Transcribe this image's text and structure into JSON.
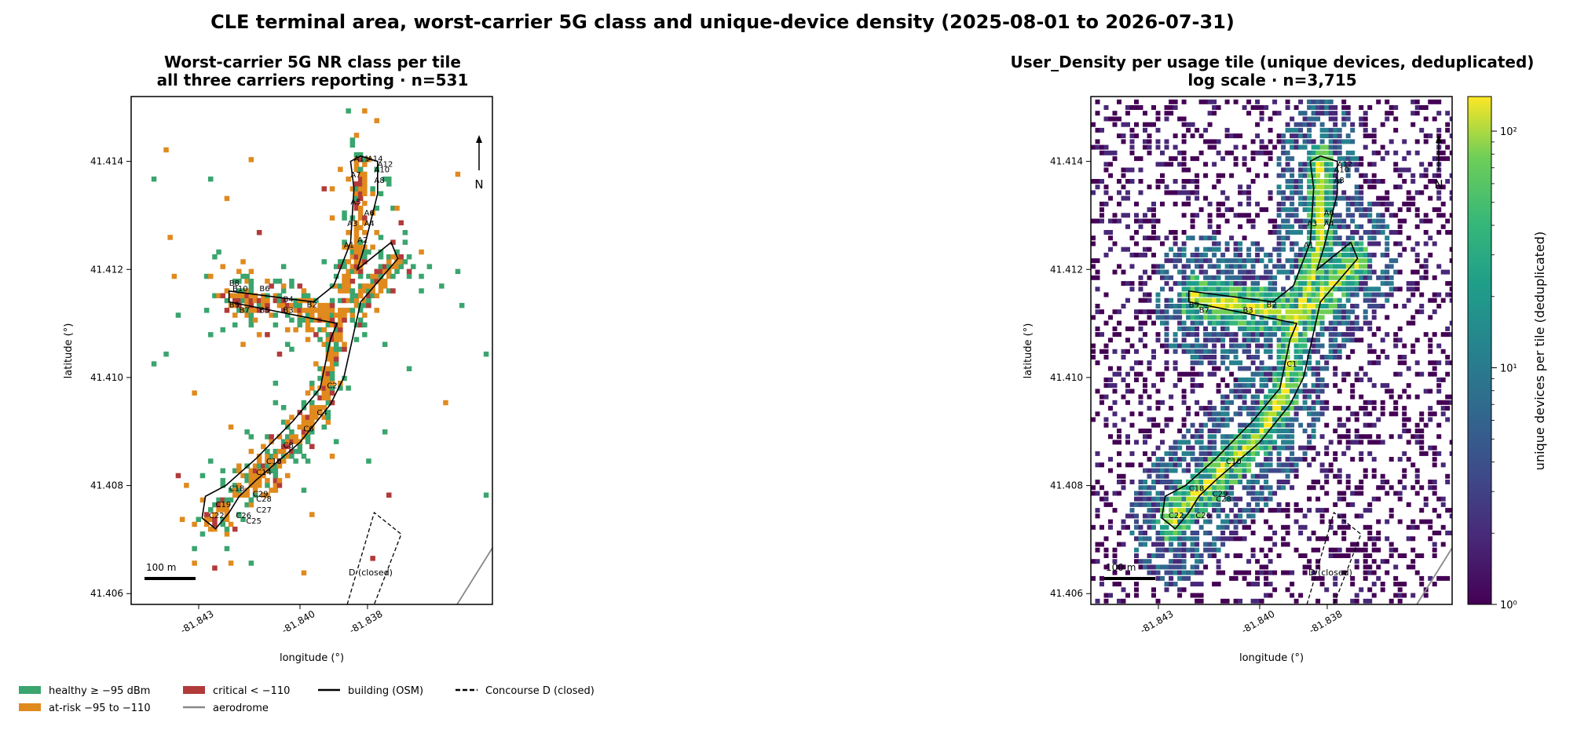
{
  "suptitle": "CLE terminal area, worst-carrier 5G class and unique-device density (2025-08-01 to 2026-07-31)",
  "chart_data": [
    {
      "type": "heatmap",
      "title_line1": "Worst-carrier 5G NR class per tile",
      "title_line2": "all three carriers reporting · n=531",
      "xlabel": "longitude (°)",
      "ylabel": "latitude (°)",
      "xticks": [
        "-81.843",
        "-81.840",
        "-81.838"
      ],
      "yticks": [
        "41.414",
        "41.412",
        "41.410",
        "41.408",
        "41.406"
      ],
      "xlim": [
        -81.845,
        -81.8343
      ],
      "ylim": [
        41.4058,
        41.4152
      ],
      "north_label": "N",
      "scalebar_label": "100 m",
      "concourse_d_label": "D (closed)",
      "classes": [
        {
          "name": "healthy ≥ −95 dBm",
          "color": "#3aa56e"
        },
        {
          "name": "at-risk −95 to −110",
          "color": "#e08a1e"
        },
        {
          "name": "critical < −110",
          "color": "#b23a3a"
        }
      ],
      "gates": [
        {
          "label": "A1",
          "lon": -81.8387,
          "lat": 41.4124
        },
        {
          "label": "A2",
          "lon": -81.8383,
          "lat": 41.4125
        },
        {
          "label": "A3",
          "lon": -81.8386,
          "lat": 41.4128
        },
        {
          "label": "A4",
          "lon": -81.8381,
          "lat": 41.4128
        },
        {
          "label": "A5",
          "lon": -81.8385,
          "lat": 41.4132
        },
        {
          "label": "A6",
          "lon": -81.8381,
          "lat": 41.413
        },
        {
          "label": "A7",
          "lon": -81.8385,
          "lat": 41.4137
        },
        {
          "label": "A8",
          "lon": -81.8378,
          "lat": 41.4136
        },
        {
          "label": "A10",
          "lon": -81.8378,
          "lat": 41.4138
        },
        {
          "label": "A11",
          "lon": -81.8384,
          "lat": 41.414
        },
        {
          "label": "A12",
          "lon": -81.8377,
          "lat": 41.4139
        },
        {
          "label": "A14",
          "lon": -81.838,
          "lat": 41.414
        },
        {
          "label": "B2",
          "lon": -81.8398,
          "lat": 41.4113
        },
        {
          "label": "B3",
          "lon": -81.8405,
          "lat": 41.4112
        },
        {
          "label": "B4",
          "lon": -81.8405,
          "lat": 41.4114
        },
        {
          "label": "B5",
          "lon": -81.8412,
          "lat": 41.4112
        },
        {
          "label": "B6",
          "lon": -81.8412,
          "lat": 41.4116
        },
        {
          "label": "B7",
          "lon": -81.8418,
          "lat": 41.4112
        },
        {
          "label": "B8",
          "lon": -81.8421,
          "lat": 41.4117
        },
        {
          "label": "B9",
          "lon": -81.8421,
          "lat": 41.4113
        },
        {
          "label": "B10",
          "lon": -81.842,
          "lat": 41.4116
        },
        {
          "label": "C2",
          "lon": -81.8392,
          "lat": 41.4098
        },
        {
          "label": "C4",
          "lon": -81.8395,
          "lat": 41.4093
        },
        {
          "label": "C6",
          "lon": -81.8399,
          "lat": 41.409
        },
        {
          "label": "C8",
          "lon": -81.8405,
          "lat": 41.4087
        },
        {
          "label": "C10",
          "lon": -81.841,
          "lat": 41.4084
        },
        {
          "label": "C14",
          "lon": -81.8413,
          "lat": 41.4082
        },
        {
          "label": "C18",
          "lon": -81.8421,
          "lat": 41.4079
        },
        {
          "label": "C19",
          "lon": -81.8425,
          "lat": 41.4076
        },
        {
          "label": "C22",
          "lon": -81.8427,
          "lat": 41.4074
        },
        {
          "label": "C25",
          "lon": -81.8416,
          "lat": 41.4073
        },
        {
          "label": "C26",
          "lon": -81.8419,
          "lat": 41.4074
        },
        {
          "label": "C27",
          "lon": -81.8413,
          "lat": 41.4075
        },
        {
          "label": "C28",
          "lon": -81.8413,
          "lat": 41.4077
        },
        {
          "label": "C29",
          "lon": -81.8414,
          "lat": 41.4078
        }
      ]
    },
    {
      "type": "heatmap",
      "title_line1": "User_Density per usage tile (unique devices, deduplicated)",
      "title_line2": "log scale · n=3,715",
      "xlabel": "longitude (°)",
      "ylabel": "latitude (°)",
      "xticks": [
        "-81.843",
        "-81.840",
        "-81.838"
      ],
      "yticks": [
        "41.414",
        "41.412",
        "41.410",
        "41.408",
        "41.406"
      ],
      "xlim": [
        -81.845,
        -81.8343
      ],
      "ylim": [
        41.4058,
        41.4152
      ],
      "north_label": "N",
      "scalebar_label": "100 m",
      "concourse_d_label": "D (closed)",
      "colorbar_label": "unique devices per tile (deduplicated)",
      "colorbar_scale": "log",
      "colorbar_range": [
        1,
        140
      ],
      "colorbar_ticks": [
        "10⁰",
        "10¹",
        "10²"
      ],
      "colormap": "viridis",
      "gate_labels_shown": [
        "A1",
        "A3",
        "A4",
        "A6",
        "A8",
        "A10",
        "A12",
        "B2",
        "B3",
        "B7",
        "B9",
        "C1",
        "C10",
        "C18",
        "C22",
        "C26",
        "C28",
        "C29"
      ]
    }
  ],
  "legend": [
    {
      "label": "healthy ≥ −95 dBm",
      "kind": "patch",
      "color": "#3aa56e"
    },
    {
      "label": "at-risk −95 to −110",
      "kind": "patch",
      "color": "#e08a1e"
    },
    {
      "label": "critical < −110",
      "kind": "patch",
      "color": "#b23a3a"
    },
    {
      "label": "aerodrome",
      "kind": "line",
      "color": "#888888"
    },
    {
      "label": "building (OSM)",
      "kind": "line",
      "color": "#000000"
    },
    {
      "label": "Concourse D (closed)",
      "kind": "dashed",
      "color": "#000000"
    }
  ]
}
